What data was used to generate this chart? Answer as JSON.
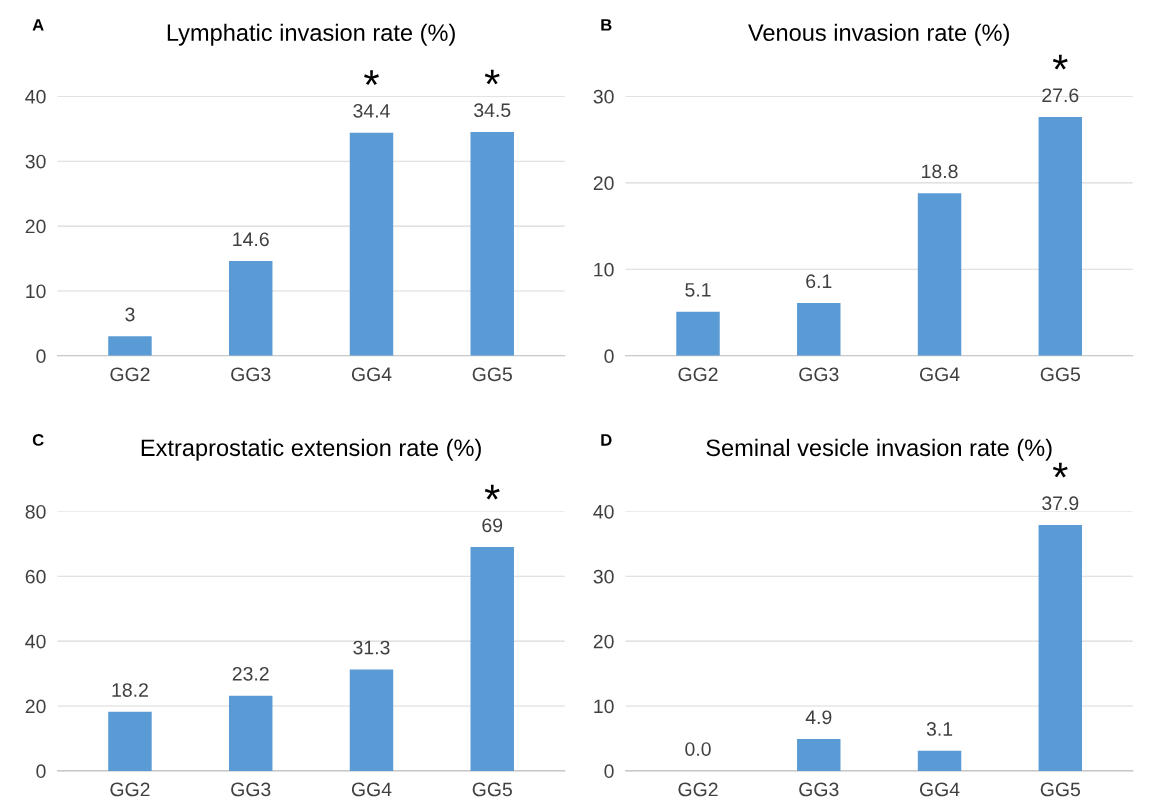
{
  "chart_data": [
    {
      "type": "bar",
      "title": "Lymphatic invasion rate (%)",
      "categories": [
        "GG2",
        "GG3",
        "GG4",
        "GG5"
      ],
      "values": [
        3,
        14.6,
        34.4,
        34.5
      ],
      "color": "#5b9bd5",
      "ylim": [
        0,
        40
      ],
      "yticks": [
        0,
        10,
        20,
        30,
        40
      ],
      "grid": "y",
      "data_labels": true,
      "annotations": [
        "A",
        {
          "text": "*",
          "x": "GG4",
          "y": 34.4
        },
        {
          "text": "*",
          "x": "GG5",
          "y": 34.5
        }
      ]
    },
    {
      "type": "bar",
      "title": "Venous invasion rate (%)",
      "categories": [
        "GG2",
        "GG3",
        "GG4",
        "GG5"
      ],
      "values": [
        5.1,
        6.1,
        18.8,
        27.6
      ],
      "color": "#5b9bd5",
      "ylim": [
        0,
        30
      ],
      "yticks": [
        0,
        10,
        20,
        30
      ],
      "grid": "y",
      "data_labels": true,
      "annotations": [
        "B",
        {
          "text": "*",
          "x": "GG5",
          "y": 27.6
        }
      ]
    },
    {
      "type": "bar",
      "title": "Extraprostatic extension rate (%)",
      "categories": [
        "GG2",
        "GG3",
        "GG4",
        "GG5"
      ],
      "values": [
        18.2,
        23.2,
        31.3,
        69
      ],
      "color": "#5b9bd5",
      "ylim": [
        0,
        80
      ],
      "yticks": [
        0,
        20,
        40,
        60,
        80
      ],
      "grid": "y",
      "data_labels": true,
      "annotations": [
        "C",
        {
          "text": "*",
          "x": "GG5",
          "y": 69
        }
      ]
    },
    {
      "type": "bar",
      "title": "Seminal vesicle invasion rate (%)",
      "categories": [
        "GG2",
        "GG3",
        "GG4",
        "GG5"
      ],
      "values": [
        0,
        4.9,
        3.1,
        37.9
      ],
      "value_labels": [
        "0.0",
        "4.9",
        "3.1",
        "37.9"
      ],
      "color": "#5b9bd5",
      "ylim": [
        0,
        40
      ],
      "yticks": [
        0,
        10,
        20,
        30,
        40
      ],
      "grid": "y",
      "annotations": [
        "D",
        {
          "text": "*",
          "x": "GG5",
          "y": 37.9
        }
      ]
    }
  ]
}
